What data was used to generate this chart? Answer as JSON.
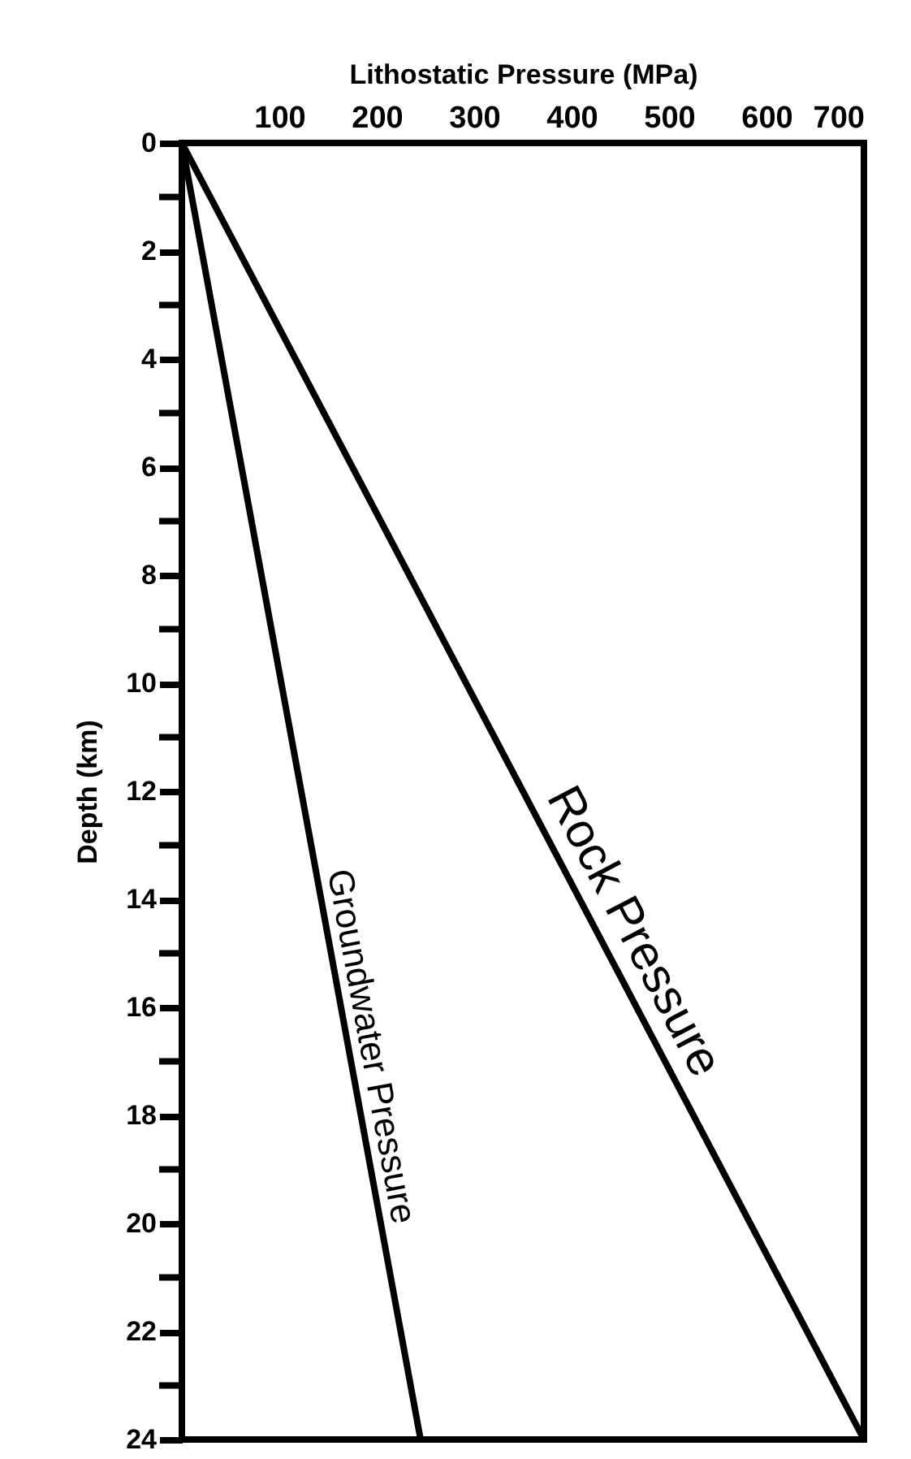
{
  "chart_data": {
    "type": "line",
    "xlabel": "Lithostatic Pressure (MPa)",
    "ylabel": "Depth (km)",
    "xlim": [
      0,
      700
    ],
    "xticks": [
      100,
      200,
      300,
      400,
      500,
      600,
      700
    ],
    "ylim": [
      24,
      0
    ],
    "yticks": [
      0,
      {
        "value": 1,
        "label": null
      },
      2,
      {
        "value": 3,
        "label": null
      },
      4,
      {
        "value": 5,
        "label": null
      },
      6,
      {
        "value": 7,
        "label": null
      },
      8,
      {
        "value": 9,
        "label": null
      },
      10,
      {
        "value": 11,
        "label": null
      },
      12,
      {
        "value": 13,
        "label": null
      },
      14,
      {
        "value": 15,
        "label": null
      },
      16,
      {
        "value": 17,
        "label": null
      },
      18,
      {
        "value": 19,
        "label": null
      },
      20,
      {
        "value": 21,
        "label": null
      },
      22,
      {
        "value": 23,
        "label": null
      },
      24
    ],
    "series": [
      {
        "name": "Rock Pressure",
        "color": "#000000",
        "x": [
          0,
          700
        ],
        "values": [
          0,
          24
        ]
      },
      {
        "name": "Groundwater Pressure",
        "color": "#000000",
        "x": [
          0,
          245
        ],
        "values": [
          0,
          24
        ]
      }
    ],
    "grid": false,
    "marker": "none",
    "line_style": "solid"
  }
}
